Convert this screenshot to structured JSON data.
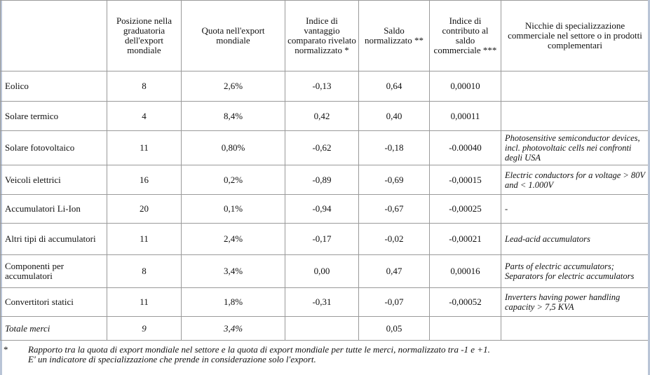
{
  "headers": [
    "",
    "Posizione nella graduatoria dell'export mondiale",
    "Quota nell'export mondiale",
    "Indice di vantaggio comparato rivelato normalizzato *",
    "Saldo normalizzato **",
    "Indice di contributo al saldo commerciale ***",
    "Nicchie di specializzazione commerciale nel settore o in prodotti complementari"
  ],
  "rows": [
    {
      "sector": "Eolico",
      "position": "8",
      "share": "2,6%",
      "rca": "-0,13",
      "balance": "0,64",
      "contribution": "0,00010",
      "niche": ""
    },
    {
      "sector": "Solare termico",
      "position": "4",
      "share": "8,4%",
      "rca": "0,42",
      "balance": "0,40",
      "contribution": "0,00011",
      "niche": ""
    },
    {
      "sector": "Solare fotovoltaico",
      "position": "11",
      "share": "0,80%",
      "rca": "-0,62",
      "balance": "-0,18",
      "contribution": "-0.00040",
      "niche": "Photosensitive semiconductor devices, incl. photovoltaic cells nei confronti degli USA"
    },
    {
      "sector": "Veicoli elettrici",
      "position": "16",
      "share": "0,2%",
      "rca": "-0,89",
      "balance": "-0,69",
      "contribution": "-0,00015",
      "niche": "Electric conductors for a voltage > 80V and < 1.000V"
    },
    {
      "sector": "Accumulatori Li-Ion",
      "position": "20",
      "share": "0,1%",
      "rca": "-0,94",
      "balance": "-0,67",
      "contribution": "-0,00025",
      "niche": "-"
    },
    {
      "sector": "Altri tipi di accumulatori",
      "position": "11",
      "share": "2,4%",
      "rca": "-0,17",
      "balance": "-0,02",
      "contribution": "-0,00021",
      "niche": "Lead-acid accumulators"
    },
    {
      "sector": "Componenti per accumulatori",
      "position": "8",
      "share": "3,4%",
      "rca": "0,00",
      "balance": "0,47",
      "contribution": "0,00016",
      "niche": "Parts of electric accumulators; Separators for electric accumulators"
    },
    {
      "sector": "Convertitori statici",
      "position": "11",
      "share": "1,8%",
      "rca": "-0,31",
      "balance": "-0,07",
      "contribution": "-0,00052",
      "niche": "Inverters having power handling capacity > 7,5 KVA"
    }
  ],
  "total": {
    "sector": "Totale merci",
    "position": "9",
    "share": "3,4%",
    "rca": "",
    "balance": "0,05",
    "contribution": "",
    "niche": ""
  },
  "notes": [
    {
      "mark": "*",
      "text": "Rapporto tra la quota di export mondiale nel settore e la quota di export mondiale per tutte le merci, normalizzato tra -1 e +1."
    },
    {
      "mark": "",
      "text": "E' un indicatore di specializzazione che prende in considerazione solo l'export."
    }
  ]
}
